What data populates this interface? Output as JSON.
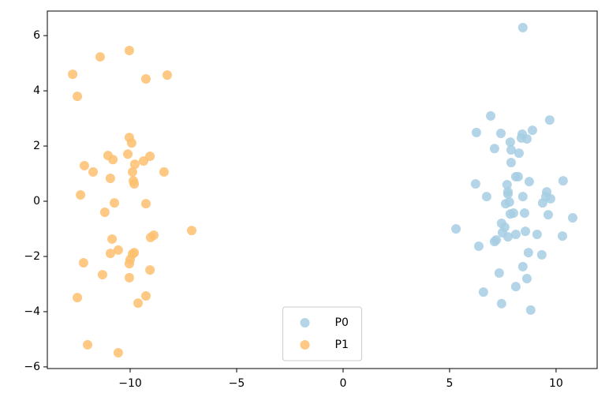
{
  "chart_data": {
    "type": "scatter",
    "xlim": [
      -13.89,
      11.93
    ],
    "ylim": [
      -6.06,
      6.89
    ],
    "xticks": [
      {
        "value": -10,
        "label": "−10"
      },
      {
        "value": -5,
        "label": "−5"
      },
      0,
      5,
      10
    ],
    "yticks": [
      {
        "value": -6,
        "label": "−6"
      },
      {
        "value": -4,
        "label": "−4"
      },
      {
        "value": -2,
        "label": "−2"
      },
      0,
      2,
      4,
      6
    ],
    "grid": false,
    "legend": "lower center",
    "series": [
      {
        "name": "P0",
        "color": "#a6cee3",
        "x": [
          8.44,
          6.93,
          9.7,
          6.26,
          7.41,
          8.41,
          8.37,
          8.89,
          8.63,
          7.85,
          7.11,
          7.89,
          8.26,
          7.89,
          8.11,
          8.22,
          8.74,
          10.33,
          6.22,
          7.7,
          7.74,
          7.74,
          6.74,
          8.44,
          9.56,
          9.52,
          9.74,
          9.37,
          7.63,
          7.81,
          8.0,
          7.85,
          8.52,
          9.63,
          10.78,
          7.44,
          7.59,
          5.3,
          7.48,
          8.56,
          8.11,
          9.11,
          10.3,
          7.74,
          7.19,
          7.11,
          6.37,
          8.7,
          9.33,
          8.44,
          7.33,
          8.63,
          8.11,
          6.59,
          7.44,
          8.81
        ],
        "y": [
          6.29,
          3.09,
          2.94,
          2.49,
          2.46,
          2.43,
          2.29,
          2.57,
          2.26,
          2.14,
          1.91,
          1.86,
          1.74,
          1.4,
          0.89,
          0.89,
          0.71,
          0.74,
          0.63,
          0.6,
          0.34,
          0.26,
          0.17,
          0.17,
          0.34,
          0.17,
          0.09,
          -0.06,
          -0.09,
          -0.03,
          -0.43,
          -0.46,
          -0.43,
          -0.49,
          -0.6,
          -0.8,
          -0.94,
          -1.0,
          -1.14,
          -1.09,
          -1.2,
          -1.2,
          -1.26,
          -1.29,
          -1.4,
          -1.46,
          -1.63,
          -1.86,
          -1.94,
          -2.37,
          -2.6,
          -2.8,
          -3.09,
          -3.29,
          -3.71,
          -3.94
        ]
      },
      {
        "name": "P1",
        "color": "#fdbf6f",
        "x": [
          -12.7,
          -12.48,
          -11.41,
          -10.04,
          -9.26,
          -8.26,
          -10.04,
          -9.93,
          -11.04,
          -10.81,
          -10.11,
          -9.37,
          -9.07,
          -9.78,
          -12.15,
          -11.74,
          -9.89,
          -8.41,
          -10.93,
          -9.85,
          -9.81,
          -12.33,
          -10.74,
          -9.26,
          -11.19,
          -7.11,
          -8.89,
          -9.04,
          -10.85,
          -10.56,
          -10.93,
          -9.81,
          -9.89,
          -10.0,
          -10.04,
          -12.19,
          -9.07,
          -11.3,
          -10.04,
          -9.26,
          -9.63,
          -12.48,
          -12.0,
          -10.56
        ],
        "y": [
          4.6,
          3.8,
          5.23,
          5.46,
          4.43,
          4.57,
          2.31,
          2.11,
          1.66,
          1.51,
          1.71,
          1.46,
          1.63,
          1.34,
          1.29,
          1.06,
          1.06,
          1.06,
          0.83,
          0.74,
          0.63,
          0.23,
          -0.06,
          -0.09,
          -0.4,
          -1.06,
          -1.23,
          -1.31,
          -1.37,
          -1.77,
          -1.89,
          -1.86,
          -1.91,
          -2.11,
          -2.26,
          -2.23,
          -2.49,
          -2.66,
          -2.77,
          -3.43,
          -3.69,
          -3.49,
          -5.2,
          -5.49
        ]
      }
    ]
  }
}
